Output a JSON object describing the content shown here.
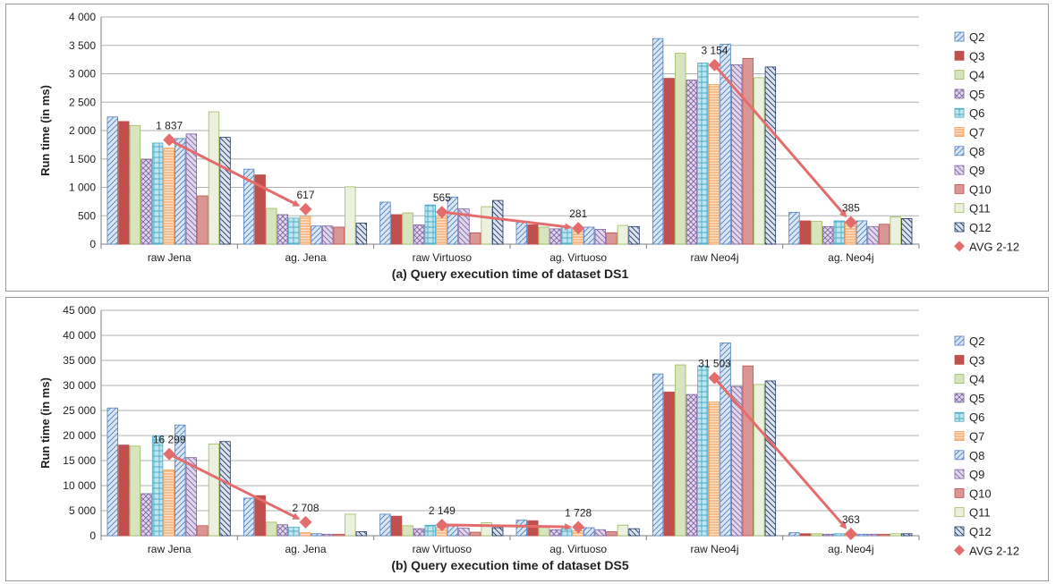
{
  "legend": {
    "series": [
      "Q2",
      "Q3",
      "Q4",
      "Q5",
      "Q6",
      "Q7",
      "Q8",
      "Q9",
      "Q10",
      "Q11",
      "Q12"
    ],
    "avg": "AVG 2-12"
  },
  "colors": {
    "accent": "#e46c6c",
    "Q2": "#4f81bd",
    "Q3": "#c0504d",
    "Q4": "#9bbb59",
    "Q5": "#8064a2",
    "Q6": "#4bacc6",
    "Q7": "#f79646",
    "Q8": "#4f81bd",
    "Q9": "#8064a2",
    "Q10": "#c0504d",
    "Q11": "#9bbb59",
    "Q12": "#1f3864"
  },
  "chart_data": [
    {
      "type": "bar",
      "title": "(a) Query execution time of dataset DS1",
      "ylabel": "Run time (in ms)",
      "xlabel": "",
      "ylim": [
        0,
        4000
      ],
      "yticks": [
        0,
        500,
        1000,
        1500,
        2000,
        2500,
        3000,
        3500,
        4000
      ],
      "ytick_labels": [
        "0",
        "500",
        "1 000",
        "1 500",
        "2 000",
        "2 500",
        "3 000",
        "3 500",
        "4 000"
      ],
      "grid": true,
      "legend_position": "right",
      "categories": [
        "raw Jena",
        "ag. Jena",
        "raw Virtuoso",
        "ag. Virtuoso",
        "raw Neo4j",
        "ag. Neo4j"
      ],
      "series": [
        {
          "name": "Q2",
          "values": [
            2240,
            1320,
            740,
            390,
            3620,
            560
          ]
        },
        {
          "name": "Q3",
          "values": [
            2160,
            1220,
            520,
            340,
            2920,
            410
          ]
        },
        {
          "name": "Q4",
          "values": [
            2090,
            630,
            550,
            300,
            3360,
            400
          ]
        },
        {
          "name": "Q5",
          "values": [
            1490,
            520,
            340,
            270,
            2890,
            310
          ]
        },
        {
          "name": "Q6",
          "values": [
            1780,
            460,
            690,
            300,
            3190,
            410
          ]
        },
        {
          "name": "Q7",
          "values": [
            1690,
            490,
            500,
            290,
            2810,
            400
          ]
        },
        {
          "name": "Q8",
          "values": [
            1860,
            320,
            830,
            300,
            3520,
            410
          ]
        },
        {
          "name": "Q9",
          "values": [
            1940,
            320,
            620,
            260,
            3160,
            310
          ]
        },
        {
          "name": "Q10",
          "values": [
            850,
            300,
            200,
            200,
            3270,
            350
          ]
        },
        {
          "name": "Q11",
          "values": [
            2330,
            1010,
            660,
            330,
            2930,
            480
          ]
        },
        {
          "name": "Q12",
          "values": [
            1880,
            370,
            770,
            310,
            3120,
            450
          ]
        }
      ],
      "avg": {
        "name": "AVG 2-12",
        "values": [
          1837,
          617,
          565,
          281,
          3154,
          385
        ],
        "labels": [
          "1 837",
          "617",
          "565",
          "281",
          "3 154",
          "385"
        ]
      }
    },
    {
      "type": "bar",
      "title": "(b) Query execution time of dataset DS5",
      "ylabel": "Run time (in ms)",
      "xlabel": "",
      "ylim": [
        0,
        45000
      ],
      "yticks": [
        0,
        5000,
        10000,
        15000,
        20000,
        25000,
        30000,
        35000,
        40000,
        45000
      ],
      "ytick_labels": [
        "0",
        "5 000",
        "10 000",
        "15 000",
        "20 000",
        "25 000",
        "30 000",
        "35 000",
        "40 000",
        "45 000"
      ],
      "grid": true,
      "legend_position": "right",
      "categories": [
        "raw Jena",
        "ag. Jena",
        "raw Virtuoso",
        "ag. Virtuoso",
        "raw Neo4j",
        "ag. Neo4j"
      ],
      "series": [
        {
          "name": "Q2",
          "values": [
            25500,
            7500,
            4300,
            3100,
            32300,
            600
          ]
        },
        {
          "name": "Q3",
          "values": [
            18100,
            8000,
            3900,
            3000,
            28700,
            400
          ]
        },
        {
          "name": "Q4",
          "values": [
            17900,
            2700,
            2000,
            1700,
            34100,
            400
          ]
        },
        {
          "name": "Q5",
          "values": [
            8400,
            2200,
            1400,
            1200,
            28200,
            300
          ]
        },
        {
          "name": "Q6",
          "values": [
            19900,
            1700,
            2100,
            1400,
            33900,
            400
          ]
        },
        {
          "name": "Q7",
          "values": [
            13100,
            600,
            1700,
            1000,
            26700,
            400
          ]
        },
        {
          "name": "Q8",
          "values": [
            22100,
            400,
            2300,
            1600,
            38500,
            300
          ]
        },
        {
          "name": "Q9",
          "values": [
            15600,
            300,
            1500,
            1200,
            29800,
            300
          ]
        },
        {
          "name": "Q10",
          "values": [
            2000,
            300,
            700,
            800,
            33900,
            300
          ]
        },
        {
          "name": "Q11",
          "values": [
            18300,
            4300,
            2600,
            2100,
            30200,
            400
          ]
        },
        {
          "name": "Q12",
          "values": [
            18800,
            800,
            1600,
            1400,
            30900,
            400
          ]
        }
      ],
      "avg": {
        "name": "AVG 2-12",
        "values": [
          16299,
          2708,
          2149,
          1728,
          31503,
          363
        ],
        "labels": [
          "16 299",
          "2 708",
          "2 149",
          "1 728",
          "31 503",
          "363"
        ]
      }
    }
  ]
}
